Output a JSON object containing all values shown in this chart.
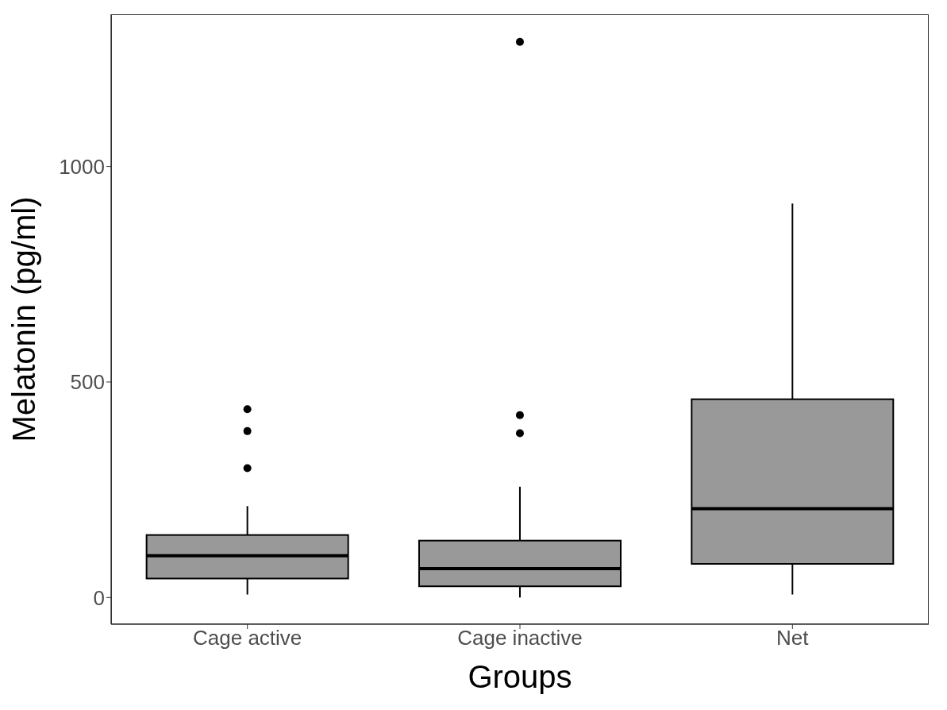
{
  "chart_data": {
    "type": "box",
    "xlabel": "Groups",
    "ylabel": "Melatonin (pg/ml)",
    "categories": [
      "Cage active",
      "Cage inactive",
      "Net"
    ],
    "color": "#999999",
    "boxes": [
      {
        "low": 7,
        "q1": 44,
        "median": 97,
        "q3": 145,
        "high": 212,
        "outliers": [
          300,
          386,
          437
        ]
      },
      {
        "low": 0,
        "q1": 26,
        "median": 67,
        "q3": 132,
        "high": 257,
        "outliers": [
          381,
          423,
          1289
        ]
      },
      {
        "low": 7,
        "q1": 78,
        "median": 206,
        "q3": 460,
        "high": 914
      }
    ],
    "ylim": [
      -62,
      1353
    ],
    "yticks": [
      0,
      500,
      1000
    ],
    "grid": false
  }
}
